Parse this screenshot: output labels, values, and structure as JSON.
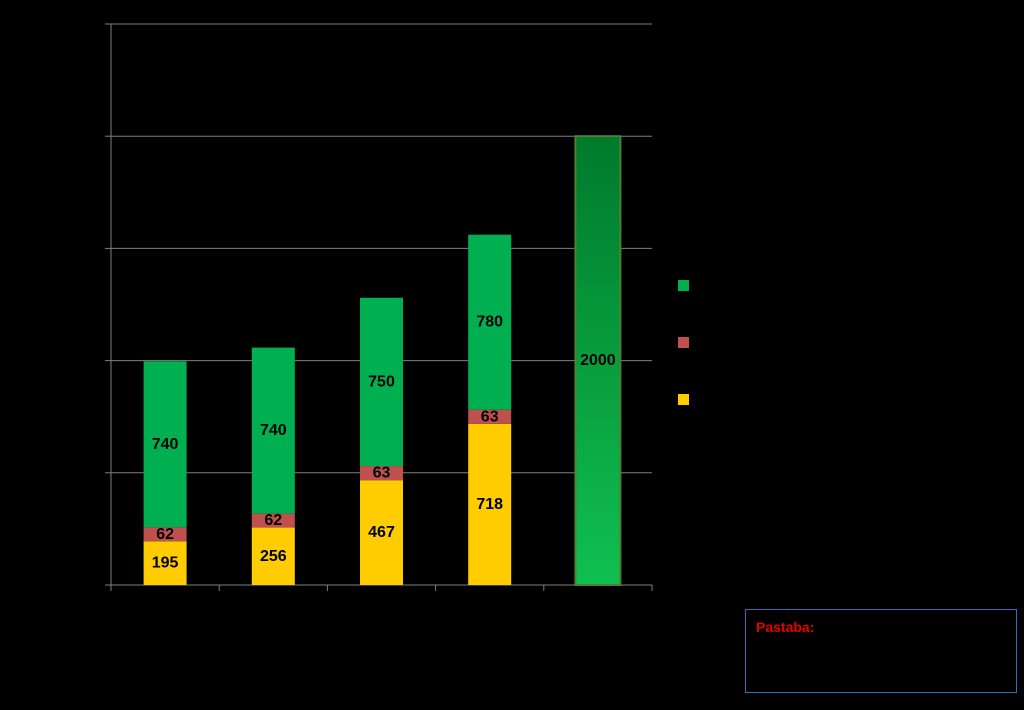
{
  "chart_data": {
    "type": "stacked-bar",
    "title": "",
    "xlabel": "",
    "ylabel": "",
    "ylim": [
      0,
      2500
    ],
    "y_major_step": 500,
    "grid": true,
    "legend_position": "right",
    "categories": [
      "",
      "",
      "",
      "",
      ""
    ],
    "series": [
      {
        "name": "",
        "color": "#FFCC00",
        "values": [
          195,
          256,
          467,
          718,
          null
        ]
      },
      {
        "name": "",
        "color": "#C0504D",
        "values": [
          62,
          62,
          63,
          63,
          null
        ]
      },
      {
        "name": "",
        "color": "#00B050",
        "values": [
          740,
          740,
          750,
          780,
          null
        ]
      }
    ],
    "target": {
      "category_index": 4,
      "value": 2000,
      "color": "#00B050",
      "label": "2000"
    },
    "legend_order": [
      2,
      1,
      0
    ]
  },
  "note": {
    "label": "Pastaba:"
  }
}
